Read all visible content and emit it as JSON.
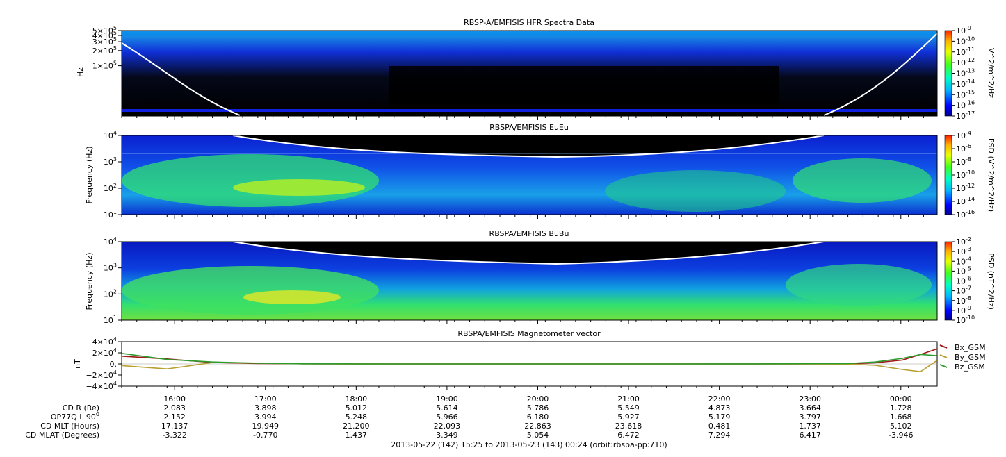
{
  "chart_data": [
    {
      "type": "heatmap",
      "title": "RBSP-A/EMFISIS  HFR Spectra Data",
      "ylabel": "Hz",
      "yscale": "log",
      "ylim": [
        10000,
        500000
      ],
      "y_tick_labels": [
        "5×10",
        "4×10",
        "3×10",
        "2×10",
        "1×10"
      ],
      "y_tick_values": [
        500000,
        400000,
        300000,
        200000,
        100000
      ],
      "y_tick_exponent": "5",
      "colorbar": {
        "label": "V^2/m^2/Hz",
        "scale": "log",
        "range": [
          1e-17,
          1e-09
        ],
        "tick_labels": [
          "10",
          "10",
          "10",
          "10",
          "10",
          "10",
          "10",
          "10",
          "10"
        ],
        "tick_exponents": [
          "-9",
          "-10",
          "-11",
          "-12",
          "-13",
          "-14",
          "-15",
          "-16",
          "-17"
        ]
      },
      "overlay_line": "white curve: high at start and end, minimum near mid-pass"
    },
    {
      "type": "heatmap",
      "title": "RBSPA/EMFISIS  EuEu",
      "ylabel": "Frequency (Hz)",
      "yscale": "log",
      "ylim": [
        10,
        10000
      ],
      "y_tick_labels": [
        "10",
        "10",
        "10",
        "10"
      ],
      "y_tick_exponents": [
        "4",
        "3",
        "2",
        "1"
      ],
      "colorbar": {
        "label": "PSD (V^2/m^2/Hz)",
        "scale": "log",
        "range": [
          1e-16,
          0.0001
        ],
        "tick_labels": [
          "10",
          "10",
          "10",
          "10",
          "10",
          "10",
          "10"
        ],
        "tick_exponents": [
          "-4",
          "-6",
          "-8",
          "-10",
          "-12",
          "-14",
          "-16"
        ]
      }
    },
    {
      "type": "heatmap",
      "title": "RBSPA/EMFISIS  BuBu",
      "ylabel": "Frequency (Hz)",
      "yscale": "log",
      "ylim": [
        10,
        10000
      ],
      "y_tick_labels": [
        "10",
        "10",
        "10",
        "10"
      ],
      "y_tick_exponents": [
        "4",
        "3",
        "2",
        "1"
      ],
      "colorbar": {
        "label": "PSD (nT^2/Hz)",
        "scale": "log",
        "range": [
          1e-10,
          0.01
        ],
        "tick_labels": [
          "10",
          "10",
          "10",
          "10",
          "10",
          "10",
          "10",
          "10",
          "10"
        ],
        "tick_exponents": [
          "-2",
          "-3",
          "-4",
          "-5",
          "-6",
          "-7",
          "-8",
          "-9",
          "-10"
        ]
      }
    },
    {
      "type": "line",
      "title": "RBSPA/EMFISIS  Magnetometer vector",
      "ylabel": "nT",
      "ylim": [
        -40000,
        40000
      ],
      "y_tick_labels": [
        "4×10",
        "2×10",
        "0.",
        "−2×10",
        "−4×10"
      ],
      "y_tick_values": [
        40000,
        20000,
        0,
        -20000,
        -40000
      ],
      "y_tick_exponents": [
        "4",
        "4",
        "",
        "4",
        "4"
      ],
      "x_hours": [
        0.0,
        0.5,
        1.0,
        1.5,
        2.0,
        3.0,
        4.0,
        5.0,
        6.0,
        7.0,
        8.0,
        8.3,
        8.6,
        8.8,
        8.98
      ],
      "series": [
        {
          "name": "Bx_GSM",
          "color": "#a01818",
          "values": [
            14000,
            9000,
            2500,
            700,
            200,
            50,
            20,
            10,
            20,
            60,
            250,
            2000,
            7000,
            17000,
            27000
          ]
        },
        {
          "name": "By_GSM",
          "color": "#b8a030",
          "values": [
            -3000,
            -9000,
            2500,
            1500,
            300,
            50,
            10,
            0,
            -10,
            -50,
            -300,
            -2500,
            -10000,
            -14000,
            6000
          ]
        },
        {
          "name": "Bz_GSM",
          "color": "#2c9c2c",
          "values": [
            19000,
            8000,
            3500,
            1200,
            300,
            60,
            20,
            10,
            30,
            100,
            700,
            3500,
            10000,
            17000,
            15000
          ]
        }
      ],
      "legend": "right"
    }
  ],
  "time_axis": {
    "labels": [
      "16:00",
      "17:00",
      "18:00",
      "19:00",
      "20:00",
      "21:00",
      "22:00",
      "23:00",
      "00:00"
    ],
    "hours_from_start": [
      0.5833,
      1.5833,
      2.5833,
      3.5833,
      4.5833,
      5.5833,
      6.5833,
      7.5833,
      8.5833
    ],
    "total_hours": 8.9833
  },
  "ephemeris": {
    "rows": [
      {
        "label": "CD R (Re)",
        "label_sup": "",
        "values": [
          "2.083",
          "3.898",
          "5.012",
          "5.614",
          "5.786",
          "5.549",
          "4.873",
          "3.664",
          "1.728"
        ]
      },
      {
        "label": "OP77Q L 90",
        "label_sup": "0",
        "values": [
          "2.152",
          "3.994",
          "5.248",
          "5.966",
          "6.180",
          "5.927",
          "5.179",
          "3.797",
          "1.668"
        ]
      },
      {
        "label": "CD MLT (Hours)",
        "label_sup": "",
        "values": [
          "17.137",
          "19.949",
          "21.200",
          "22.093",
          "22.863",
          "23.618",
          "0.481",
          "1.737",
          "5.102"
        ]
      },
      {
        "label": "CD MLAT (Degrees)",
        "label_sup": "",
        "values": [
          "-3.322",
          "-0.770",
          "1.437",
          "3.349",
          "5.054",
          "6.472",
          "7.294",
          "6.417",
          "-3.946"
        ]
      }
    ]
  },
  "footer": "2013-05-22 (142) 15:25 to 2013-05-23 (143) 00:24 (orbit:rbspa-pp:710)",
  "colors": {
    "background_dark": "#000000",
    "spectrogram_low": "#0a14d8",
    "spectrogram_mid": "#10c8c8",
    "spectrogram_high": "#ffe000",
    "overlay_line": "#ffffff"
  }
}
